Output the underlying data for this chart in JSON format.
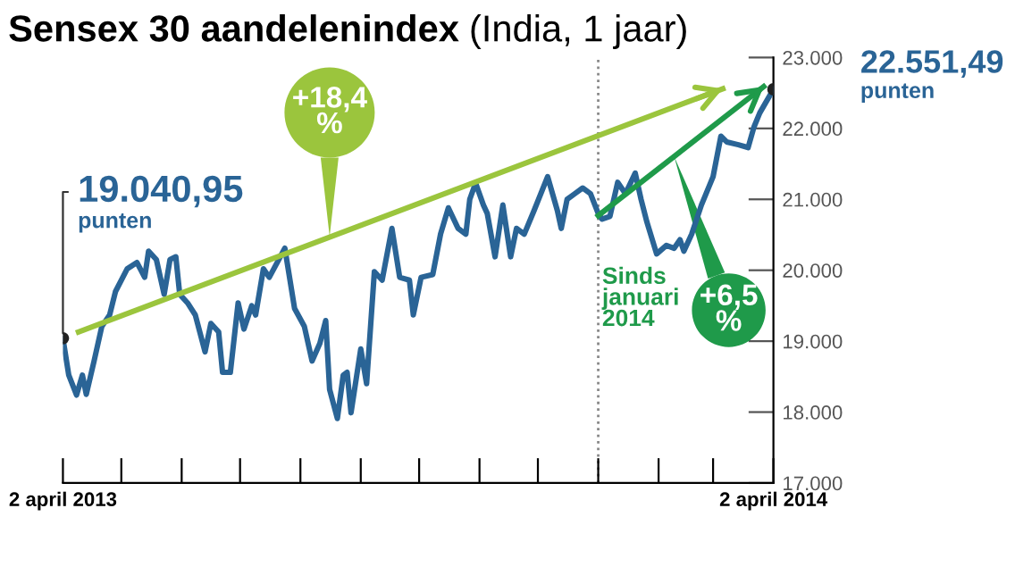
{
  "chart_data": {
    "type": "line",
    "title": "Sensex 30 aandelenindex",
    "subtitle": "(India, 1 jaar)",
    "xlim": [
      "2013-04-02",
      "2014-04-02"
    ],
    "xticks": [
      {
        "value": "2013-04-02",
        "label": "2 april 2013"
      },
      {
        "value": "2013-05-02",
        "label": null
      },
      {
        "value": "2013-06-02",
        "label": null
      },
      {
        "value": "2013-07-02",
        "label": null
      },
      {
        "value": "2013-08-02",
        "label": null
      },
      {
        "value": "2013-09-02",
        "label": null
      },
      {
        "value": "2013-10-02",
        "label": null
      },
      {
        "value": "2013-11-02",
        "label": null
      },
      {
        "value": "2013-12-02",
        "label": null
      },
      {
        "value": "2014-01-02",
        "label": null
      },
      {
        "value": "2014-02-02",
        "label": null
      },
      {
        "value": "2014-03-02",
        "label": null
      },
      {
        "value": "2014-04-02",
        "label": "2 april 2014"
      }
    ],
    "ylim": [
      17000,
      23000
    ],
    "yticks": [
      {
        "value": 17000,
        "label": "17.000"
      },
      {
        "value": 18000,
        "label": "18.000"
      },
      {
        "value": 19000,
        "label": "19.000"
      },
      {
        "value": 20000,
        "label": "20.000"
      },
      {
        "value": 21000,
        "label": "21.000"
      },
      {
        "value": 22000,
        "label": "22.000"
      },
      {
        "value": 23000,
        "label": "23.000"
      }
    ],
    "grid": false,
    "legend": false,
    "series": [
      {
        "color": "#2a6496",
        "x": [
          "2013-04-02",
          "2013-04-05",
          "2013-04-09",
          "2013-04-12",
          "2013-04-14",
          "2013-04-18",
          "2013-04-22",
          "2013-04-26",
          "2013-04-29",
          "2013-05-05",
          "2013-05-10",
          "2013-05-14",
          "2013-05-16",
          "2013-05-20",
          "2013-05-24",
          "2013-05-27",
          "2013-05-30",
          "2013-06-01",
          "2013-06-05",
          "2013-06-09",
          "2013-06-14",
          "2013-06-17",
          "2013-06-21",
          "2013-06-23",
          "2013-06-27",
          "2013-07-01",
          "2013-07-04",
          "2013-07-08",
          "2013-07-10",
          "2013-07-14",
          "2013-07-17",
          "2013-07-25",
          "2013-07-30",
          "2013-08-04",
          "2013-08-08",
          "2013-08-12",
          "2013-08-15",
          "2013-08-17",
          "2013-08-21",
          "2013-08-24",
          "2013-08-26",
          "2013-08-28",
          "2013-09-02",
          "2013-09-05",
          "2013-09-09",
          "2013-09-13",
          "2013-09-18",
          "2013-09-22",
          "2013-09-27",
          "2013-09-29",
          "2013-10-03",
          "2013-10-09",
          "2013-10-13",
          "2013-10-17",
          "2013-10-22",
          "2013-10-26",
          "2013-10-28",
          "2013-10-31",
          "2013-11-04",
          "2013-11-06",
          "2013-11-10",
          "2013-11-14",
          "2013-11-18",
          "2013-11-21",
          "2013-11-25",
          "2013-11-30",
          "2013-12-07",
          "2013-12-12",
          "2013-12-14",
          "2013-12-17",
          "2013-12-21",
          "2013-12-25",
          "2013-12-29",
          "2014-01-02",
          "2014-01-04",
          "2014-01-08",
          "2014-01-12",
          "2014-01-16",
          "2014-01-21",
          "2014-01-24",
          "2014-01-27",
          "2014-02-01",
          "2014-02-06",
          "2014-02-10",
          "2014-02-13",
          "2014-02-15",
          "2014-02-19",
          "2014-02-24",
          "2014-03-02",
          "2014-03-06",
          "2014-03-09",
          "2014-03-15",
          "2014-03-20",
          "2014-03-23",
          "2014-03-26",
          "2014-04-02"
        ],
        "values": [
          19040.95,
          18520,
          18240,
          18520,
          18250,
          18720,
          19210,
          19370,
          19700,
          20020,
          20110,
          19900,
          20270,
          20150,
          19660,
          20150,
          20190,
          19660,
          19540,
          19370,
          18850,
          19250,
          19130,
          18560,
          18560,
          19540,
          19170,
          19500,
          19370,
          20020,
          19900,
          20310,
          19460,
          19210,
          18720,
          18970,
          19290,
          18320,
          17910,
          18520,
          18560,
          17990,
          18890,
          18400,
          19980,
          19860,
          20590,
          19900,
          19860,
          19370,
          19900,
          19940,
          20510,
          20880,
          20590,
          20510,
          21000,
          21230,
          20920,
          20800,
          20190,
          20920,
          20190,
          20590,
          20510,
          20840,
          21320,
          20840,
          20590,
          21000,
          21080,
          21160,
          21080,
          20800,
          20720,
          20760,
          21240,
          21080,
          21370,
          21000,
          20680,
          20230,
          20350,
          20310,
          20430,
          20270,
          20510,
          20920,
          21320,
          21890,
          21810,
          21770,
          21730,
          22020,
          22220,
          22551.49
        ]
      },
      {
        "color": "#9bc53d",
        "x": [
          "2013-04-10",
          "2014-03-07"
        ],
        "values": [
          19130,
          22560
        ]
      },
      {
        "color": "#1f9a4a",
        "x": [
          "2014-01-02",
          "2014-03-28"
        ],
        "values": [
          20770,
          22590
        ]
      }
    ],
    "ref_lines": [
      {
        "axis": "x",
        "value": "2014-01-02",
        "label": "Sinds januari 2014",
        "color": "#888888",
        "line_style": "dotted"
      }
    ],
    "annotations": [
      {
        "text": "19.040,95\npunten",
        "x": "2013-04-02",
        "y": 19040.95
      },
      {
        "text": "22.551,49\npunten",
        "x": "2014-04-02",
        "y": 22551.49
      },
      {
        "text": "+18,4\n%",
        "x": "2013-08-17",
        "y": 20475
      },
      {
        "text": "+6,5\n%",
        "x": "2014-02-10",
        "y": 21605
      }
    ]
  }
}
